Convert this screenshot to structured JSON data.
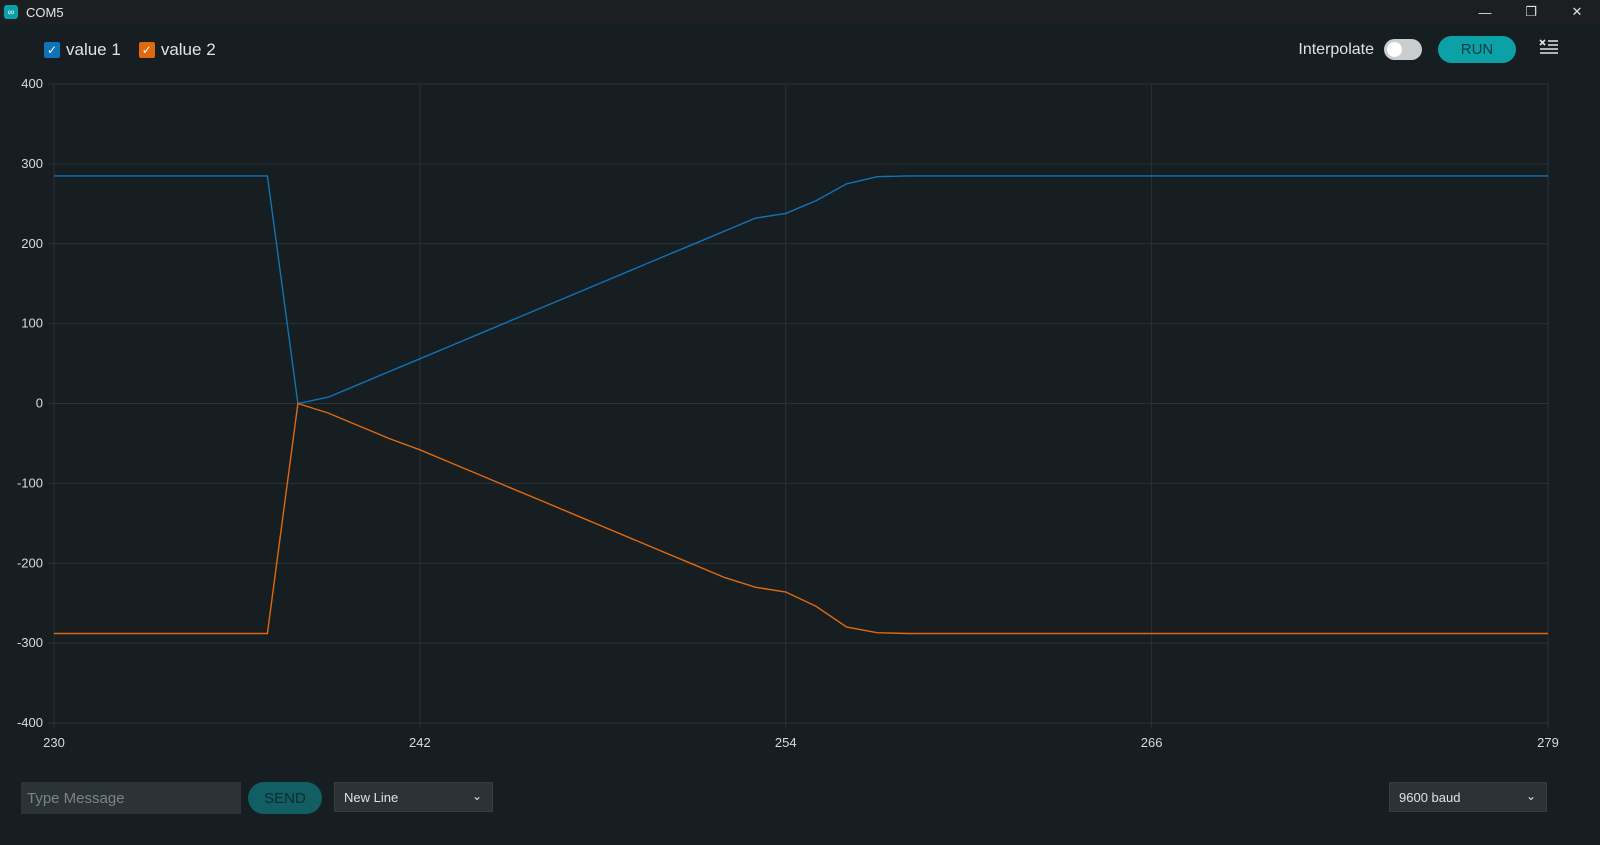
{
  "window": {
    "title": "COM5",
    "controls": [
      "minimize",
      "restore",
      "close"
    ]
  },
  "toolbar": {
    "legend": [
      {
        "label": "value 1",
        "checked": true,
        "color": "#0f73b8"
      },
      {
        "label": "value 2",
        "checked": true,
        "color": "#e0690d"
      }
    ],
    "interpolate_label": "Interpolate",
    "interpolate_on": false,
    "run_label": "RUN",
    "clear_icon": "clear-list-icon"
  },
  "bottom": {
    "message_placeholder": "Type Message",
    "message_value": "",
    "send_label": "SEND",
    "line_ending": "New Line",
    "baud": "9600 baud"
  },
  "chart_data": {
    "type": "line",
    "title": "",
    "xlabel": "",
    "ylabel": "",
    "xlim": [
      230,
      279
    ],
    "ylim": [
      -400,
      400
    ],
    "x_ticks": [
      230,
      242,
      254,
      266,
      279
    ],
    "y_ticks": [
      400,
      300,
      200,
      100,
      0,
      -100,
      -200,
      -300,
      -400
    ],
    "grid": true,
    "legend_position": "top-left",
    "x": [
      230,
      231,
      232,
      233,
      234,
      235,
      236,
      237,
      238,
      239,
      240,
      241,
      242,
      243,
      244,
      245,
      246,
      247,
      248,
      249,
      250,
      251,
      252,
      253,
      254,
      255,
      256,
      257,
      258,
      259,
      260,
      261,
      262,
      263,
      264,
      265,
      266,
      267,
      268,
      269,
      270,
      271,
      272,
      273,
      274,
      275,
      276,
      277,
      278,
      279
    ],
    "series": [
      {
        "name": "value 1",
        "color": "#0f73b8",
        "values": [
          285,
          285,
          285,
          285,
          285,
          285,
          285,
          285,
          0,
          8,
          24,
          40,
          56,
          72,
          88,
          104,
          120,
          136,
          152,
          168,
          184,
          200,
          216,
          232,
          238,
          254,
          275,
          284,
          285,
          285,
          285,
          285,
          285,
          285,
          285,
          285,
          285,
          285,
          285,
          285,
          285,
          285,
          285,
          285,
          285,
          285,
          285,
          285,
          285,
          285
        ]
      },
      {
        "name": "value 2",
        "color": "#e0690d",
        "values": [
          -288,
          -288,
          -288,
          -288,
          -288,
          -288,
          -288,
          -288,
          0,
          -12,
          -28,
          -44,
          -58,
          -74,
          -90,
          -106,
          -122,
          -138,
          -154,
          -170,
          -186,
          -202,
          -218,
          -230,
          -236,
          -254,
          -280,
          -287,
          -288,
          -288,
          -288,
          -288,
          -288,
          -288,
          -288,
          -288,
          -288,
          -288,
          -288,
          -288,
          -288,
          -288,
          -288,
          -288,
          -288,
          -288,
          -288,
          -288,
          -288,
          -288
        ]
      }
    ]
  }
}
